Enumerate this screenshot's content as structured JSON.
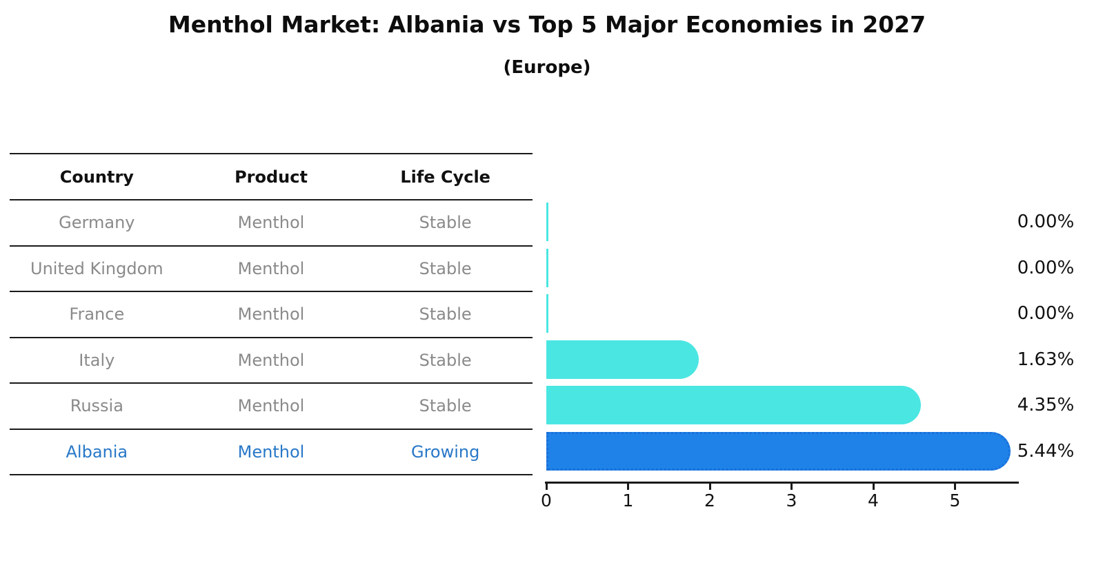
{
  "title": "Menthol Market: Albania vs Top 5 Major Economies in 2027",
  "subtitle": "(Europe)",
  "table": {
    "columns": [
      "Country",
      "Product",
      "Life Cycle"
    ],
    "rows": [
      {
        "country": "Germany",
        "product": "Menthol",
        "life_cycle": "Stable",
        "highlight": false
      },
      {
        "country": "United Kingdom",
        "product": "Menthol",
        "life_cycle": "Stable",
        "highlight": false
      },
      {
        "country": "France",
        "product": "Menthol",
        "life_cycle": "Stable",
        "highlight": false
      },
      {
        "country": "Italy",
        "product": "Menthol",
        "life_cycle": "Stable",
        "highlight": false
      },
      {
        "country": "Russia",
        "product": "Menthol",
        "life_cycle": "Stable",
        "highlight": false
      },
      {
        "country": "Albania",
        "product": "Menthol",
        "life_cycle": "Growing",
        "highlight": true
      }
    ]
  },
  "chart_data": {
    "type": "bar",
    "orientation": "horizontal",
    "title": "Menthol Market: Albania vs Top 5 Major Economies in 2027",
    "subtitle": "(Europe)",
    "categories": [
      "Germany",
      "United Kingdom",
      "France",
      "Italy",
      "Russia",
      "Albania"
    ],
    "values": [
      0.0,
      0.0,
      0.0,
      1.63,
      4.35,
      5.44
    ],
    "value_labels": [
      "0.00%",
      "0.00%",
      "0.00%",
      "1.63%",
      "4.35%",
      "5.44%"
    ],
    "x_ticks": [
      "0",
      "1",
      "2",
      "3",
      "4",
      "5"
    ],
    "xlim": [
      0,
      5.76
    ],
    "xlabel": "",
    "ylabel": "",
    "grid": false,
    "legend": "none",
    "colors": {
      "bar_default": "#4ae6e2",
      "bar_highlight": "#1f82e8",
      "bar_highlight_border": "#1a6fd9",
      "highlight_text": "#2878c8",
      "muted_text": "#8a8a8a",
      "header_text": "#111111",
      "axis": "#1a1a1a",
      "background": "#ffffff"
    }
  }
}
